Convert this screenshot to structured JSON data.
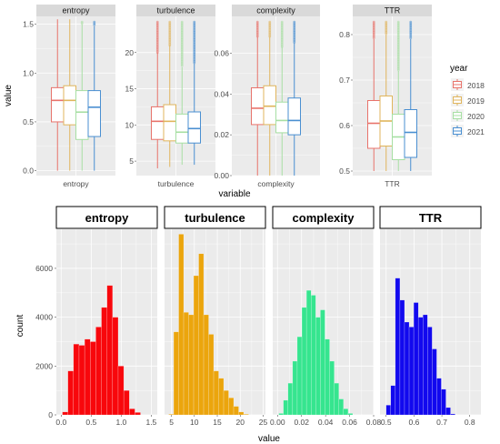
{
  "chart_data": [
    {
      "type": "boxplot",
      "facets": [
        "entropy",
        "turbulence",
        "complexity",
        "TTR"
      ],
      "xlabel": "variable",
      "ylabel": "value",
      "legend": {
        "title": "year",
        "position": "right",
        "entries": [
          "2018",
          "2019",
          "2020",
          "2021"
        ]
      },
      "colors": {
        "2018": "#e8736b",
        "2019": "#e0b55c",
        "2020": "#a7dfa3",
        "2021": "#4a8fd1"
      },
      "panels": [
        {
          "name": "entropy",
          "xtick": "entropy",
          "ylim": [
            -0.05,
            1.58
          ],
          "yticks": [
            0.0,
            0.5,
            1.0,
            1.5
          ],
          "boxes": [
            {
              "year": "2018",
              "min": 0.0,
              "q1": 0.5,
              "median": 0.72,
              "q3": 0.85,
              "max": 1.55
            },
            {
              "year": "2019",
              "min": 0.0,
              "q1": 0.47,
              "median": 0.72,
              "q3": 0.87,
              "max": 1.55
            },
            {
              "year": "2020",
              "min": 0.0,
              "q1": 0.32,
              "median": 0.6,
              "q3": 0.82,
              "max": 1.5
            },
            {
              "year": "2021",
              "min": 0.0,
              "q1": 0.35,
              "median": 0.65,
              "q3": 0.82,
              "max": 1.48
            }
          ]
        },
        {
          "name": "turbulence",
          "xtick": "turbulence",
          "ylim": [
            3,
            25
          ],
          "yticks": [
            5,
            10,
            15,
            20
          ],
          "boxes": [
            {
              "year": "2018",
              "min": 4,
              "q1": 8,
              "median": 10.5,
              "q3": 12.5,
              "max": 20
            },
            {
              "year": "2019",
              "min": 4.2,
              "q1": 7.8,
              "median": 10.5,
              "q3": 12.8,
              "max": 21
            },
            {
              "year": "2020",
              "min": 4.5,
              "q1": 7.5,
              "median": 9,
              "q3": 11.5,
              "max": 18
            },
            {
              "year": "2021",
              "min": 4.5,
              "q1": 7.5,
              "median": 9.5,
              "q3": 11.8,
              "max": 18.5
            }
          ]
        },
        {
          "name": "complexity",
          "xtick": "complexity",
          "ylim": [
            0,
            0.078
          ],
          "yticks": [
            0.0,
            0.02,
            0.04,
            0.06
          ],
          "boxes": [
            {
              "year": "2018",
              "min": 0.0,
              "q1": 0.025,
              "median": 0.033,
              "q3": 0.043,
              "max": 0.068
            },
            {
              "year": "2019",
              "min": 0.0,
              "q1": 0.025,
              "median": 0.034,
              "q3": 0.044,
              "max": 0.068
            },
            {
              "year": "2020",
              "min": 0.0,
              "q1": 0.021,
              "median": 0.027,
              "q3": 0.036,
              "max": 0.063
            },
            {
              "year": "2021",
              "min": 0.0,
              "q1": 0.02,
              "median": 0.027,
              "q3": 0.038,
              "max": 0.065
            }
          ]
        },
        {
          "name": "TTR",
          "xtick": "TTR",
          "ylim": [
            0.49,
            0.84
          ],
          "yticks": [
            0.5,
            0.6,
            0.7,
            0.8
          ],
          "boxes": [
            {
              "year": "2018",
              "min": 0.5,
              "q1": 0.55,
              "median": 0.605,
              "q3": 0.655,
              "max": 0.79
            },
            {
              "year": "2019",
              "min": 0.5,
              "q1": 0.555,
              "median": 0.61,
              "q3": 0.665,
              "max": 0.8
            },
            {
              "year": "2020",
              "min": 0.5,
              "q1": 0.525,
              "median": 0.575,
              "q3": 0.625,
              "max": 0.72
            },
            {
              "year": "2021",
              "min": 0.5,
              "q1": 0.53,
              "median": 0.585,
              "q3": 0.635,
              "max": 0.79
            }
          ]
        }
      ]
    },
    {
      "type": "bar",
      "subtype": "histogram",
      "facets": [
        "entropy",
        "turbulence",
        "complexity",
        "TTR"
      ],
      "xlabel": "value",
      "ylabel": "count",
      "ylim": [
        0,
        7600
      ],
      "yticks": [
        0,
        2000,
        4000,
        6000
      ],
      "panels": [
        {
          "name": "entropy",
          "color": "#f8070c",
          "xlim": [
            -0.08,
            1.6
          ],
          "xticks": [
            0.0,
            0.5,
            1.0,
            1.5
          ],
          "bin_width": 0.093,
          "bins": [
            0.02,
            0.112,
            0.205,
            0.298,
            0.391,
            0.484,
            0.577,
            0.67,
            0.763,
            0.856,
            0.949,
            1.042,
            1.135,
            1.228
          ],
          "counts": [
            120,
            1800,
            2900,
            2850,
            3100,
            3000,
            3600,
            4400,
            5300,
            4000,
            2000,
            1000,
            250,
            100
          ]
        },
        {
          "name": "turbulence",
          "color": "#eba50d",
          "xlim": [
            3.5,
            25.5
          ],
          "xticks": [
            5,
            10,
            15,
            20,
            25
          ],
          "bin_width": 1.09,
          "bins": [
            4.4,
            5.49,
            6.58,
            7.67,
            8.76,
            9.85,
            10.94,
            12.03,
            13.12,
            14.21,
            15.3,
            16.39,
            17.48,
            18.57,
            19.66,
            20.75
          ],
          "counts": [
            30,
            3400,
            7400,
            4200,
            4100,
            5700,
            6600,
            4100,
            3300,
            1800,
            1500,
            1000,
            700,
            350,
            120,
            30
          ]
        },
        {
          "name": "complexity",
          "color": "#36e58f",
          "xlim": [
            -0.004,
            0.08
          ],
          "xticks": [
            0.0,
            0.02,
            0.04,
            0.06,
            0.08
          ],
          "bin_width": 0.00385,
          "bins": [
            0.001,
            0.00485,
            0.0087,
            0.01255,
            0.0164,
            0.02025,
            0.0241,
            0.02795,
            0.0318,
            0.03565,
            0.0395,
            0.04335,
            0.0472,
            0.05105,
            0.0549,
            0.05875
          ],
          "counts": [
            60,
            600,
            1300,
            2200,
            3200,
            4400,
            5100,
            4900,
            4000,
            4300,
            3100,
            2200,
            1300,
            650,
            250,
            60
          ]
        },
        {
          "name": "TTR",
          "color": "#1209ee",
          "xlim": [
            0.478,
            0.84
          ],
          "xticks": [
            0.5,
            0.6,
            0.7,
            0.8
          ],
          "bin_width": 0.0165,
          "bins": [
            0.5,
            0.5165,
            0.533,
            0.5495,
            0.566,
            0.5825,
            0.599,
            0.6155,
            0.632,
            0.6485,
            0.665,
            0.6815,
            0.698,
            0.7145,
            0.731
          ],
          "counts": [
            400,
            1200,
            5600,
            4700,
            3800,
            3600,
            4600,
            4000,
            4100,
            3600,
            2700,
            1500,
            1050,
            300,
            40
          ]
        }
      ]
    }
  ]
}
